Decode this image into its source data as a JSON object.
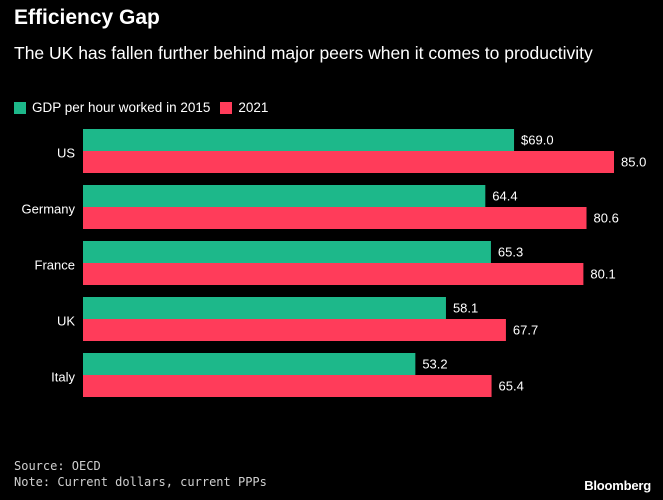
{
  "chart_data": {
    "type": "bar",
    "orientation": "horizontal",
    "title": "Efficiency Gap",
    "subtitle": "The UK has fallen further behind major peers when it comes to productivity",
    "categories": [
      "US",
      "Germany",
      "France",
      "UK",
      "Italy"
    ],
    "series": [
      {
        "name": "GDP per hour worked in 2015",
        "color": "#1db88a",
        "values": [
          69.0,
          64.4,
          65.3,
          58.1,
          53.2
        ],
        "labels": [
          "$69.0",
          "64.4",
          "65.3",
          "58.1",
          "53.2"
        ]
      },
      {
        "name": "2021",
        "color": "#ff3c5a",
        "values": [
          85.0,
          80.6,
          80.1,
          67.7,
          65.4
        ],
        "labels": [
          "85.0",
          "80.6",
          "80.1",
          "67.7",
          "65.4"
        ]
      }
    ],
    "xlim": [
      0,
      85
    ],
    "grid": false,
    "legend": "top-left"
  },
  "footer": {
    "source": "Source: OECD",
    "note": "Note: Current dollars, current PPPs"
  },
  "brand": "Bloomberg"
}
